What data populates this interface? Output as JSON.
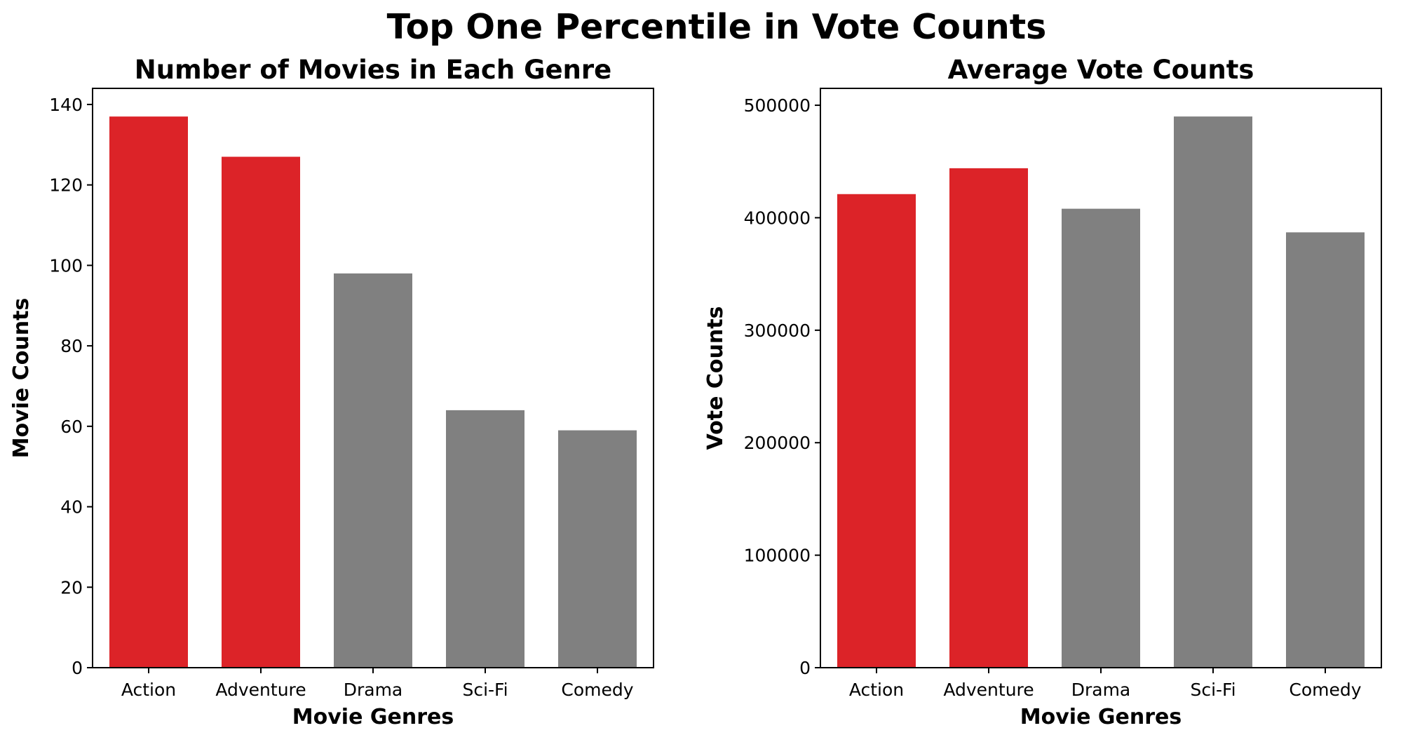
{
  "figure": {
    "title": "Top One Percentile in Vote Counts"
  },
  "colors": {
    "highlight": "#dc2328",
    "default": "#808080"
  },
  "chart_data": [
    {
      "type": "bar",
      "title": "Number of Movies in Each Genre",
      "xlabel": "Movie Genres",
      "ylabel": "Movie Counts",
      "categories": [
        "Action",
        "Adventure",
        "Drama",
        "Sci-Fi",
        "Comedy"
      ],
      "values": [
        137,
        127,
        98,
        64,
        59
      ],
      "highlighted": [
        "Action",
        "Adventure"
      ],
      "ylim": [
        0,
        144
      ],
      "yticks": [
        0,
        20,
        40,
        60,
        80,
        100,
        120,
        140
      ],
      "ytick_labels": [
        "0",
        "20",
        "40",
        "60",
        "80",
        "100",
        "120",
        "140"
      ],
      "grid": false,
      "legend": "none"
    },
    {
      "type": "bar",
      "title": "Average Vote Counts",
      "xlabel": "Movie Genres",
      "ylabel": "Vote Counts",
      "categories": [
        "Action",
        "Adventure",
        "Drama",
        "Sci-Fi",
        "Comedy"
      ],
      "values": [
        421000,
        444000,
        408000,
        490000,
        387000
      ],
      "highlighted": [
        "Action",
        "Adventure"
      ],
      "ylim": [
        0,
        515000
      ],
      "yticks": [
        0,
        100000,
        200000,
        300000,
        400000,
        500000
      ],
      "ytick_labels": [
        "0",
        "100000",
        "200000",
        "300000",
        "400000",
        "500000"
      ],
      "grid": false,
      "legend": "none"
    }
  ]
}
